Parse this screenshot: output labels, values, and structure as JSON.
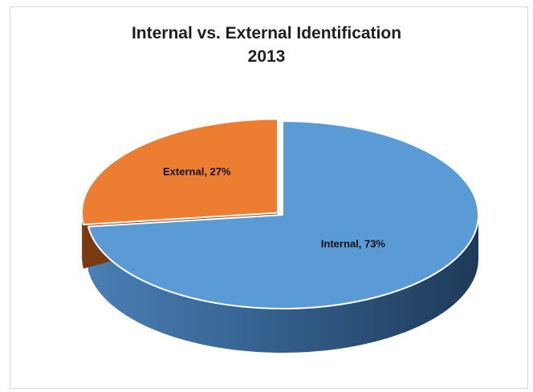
{
  "chart_data": {
    "type": "pie",
    "title": "Internal vs. External Identification",
    "subtitle": "2013",
    "categories": [
      "Internal",
      "External"
    ],
    "values": [
      73,
      27
    ],
    "unit": "%",
    "data_labels": [
      "Internal, 73%",
      "External, 27%"
    ],
    "style": "3d-exploded",
    "exploded": "External",
    "colors": {
      "Internal": "#5b9bd5",
      "External": "#ed7d31"
    },
    "legend": "none"
  }
}
